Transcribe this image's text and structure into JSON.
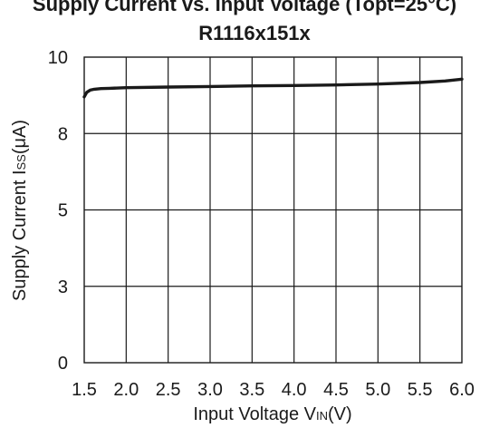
{
  "chart_data": {
    "type": "line",
    "title_line1": "Supply Current vs. Input Voltage (Topt=25°C)",
    "title_line2": "R1116x151x",
    "xlabel": {
      "pre": "Input Voltage V",
      "sub": "IN",
      "post": "(V)"
    },
    "ylabel": {
      "pre": "Supply Current I",
      "sub": "SS",
      "post": "(μA)"
    },
    "xlim": [
      1.5,
      6.0
    ],
    "ylim": [
      0,
      10
    ],
    "x_ticks": [
      1.5,
      2.0,
      2.5,
      3.0,
      3.5,
      4.0,
      4.5,
      5.0,
      5.5,
      6.0
    ],
    "x_tick_labels": [
      "1.5",
      "2.0",
      "2.5",
      "3.0",
      "3.5",
      "4.0",
      "4.5",
      "5.0",
      "5.5",
      "6.0"
    ],
    "y_ticks": [
      0,
      2.5,
      5,
      7.5,
      10
    ],
    "y_tick_labels": [
      "0",
      "3",
      "5",
      "8",
      "10"
    ],
    "grid": true,
    "series": [
      {
        "color": "#1a1a1a",
        "x": [
          1.5,
          1.53,
          1.57,
          1.62,
          1.7,
          1.8,
          2.0,
          2.5,
          3.0,
          3.5,
          4.0,
          4.5,
          5.0,
          5.5,
          5.8,
          6.0
        ],
        "y": [
          8.7,
          8.85,
          8.92,
          8.95,
          8.97,
          8.98,
          9.0,
          9.02,
          9.04,
          9.06,
          9.07,
          9.09,
          9.12,
          9.17,
          9.22,
          9.28
        ]
      }
    ]
  }
}
